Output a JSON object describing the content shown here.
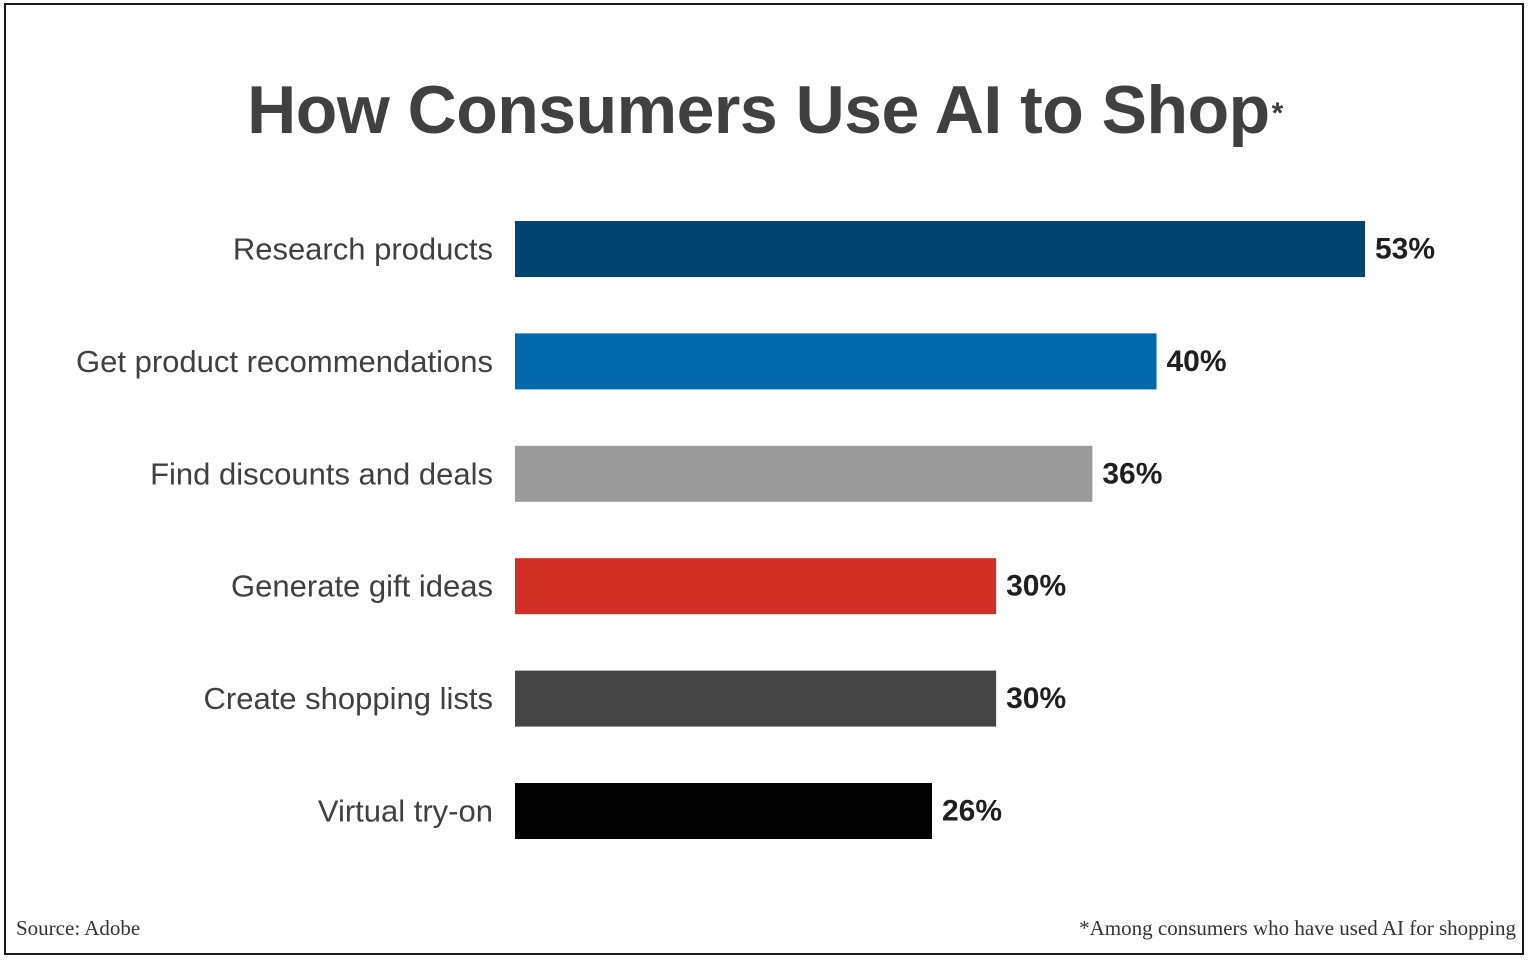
{
  "chart_data": {
    "type": "bar",
    "orientation": "horizontal",
    "title": "How Consumers Use AI to Shop",
    "title_marker": "*",
    "categories": [
      "Research products",
      "Get product recommendations",
      "Find discounts and deals",
      "Generate gift ideas",
      "Create shopping lists",
      "Virtual try-on"
    ],
    "values": [
      53,
      40,
      36,
      30,
      30,
      26
    ],
    "value_labels": [
      "53%",
      "40%",
      "36%",
      "30%",
      "30%",
      "26%"
    ],
    "colors": [
      "#004571",
      "#0268ad",
      "#9b9b9b",
      "#d12e24",
      "#454545",
      "#000000"
    ],
    "unit": "%",
    "xlim": [
      0,
      53
    ],
    "grid": false,
    "legend": "none"
  },
  "footer": {
    "source": "Source: Adobe",
    "footnote": "*Among consumers who have used AI for shopping"
  }
}
